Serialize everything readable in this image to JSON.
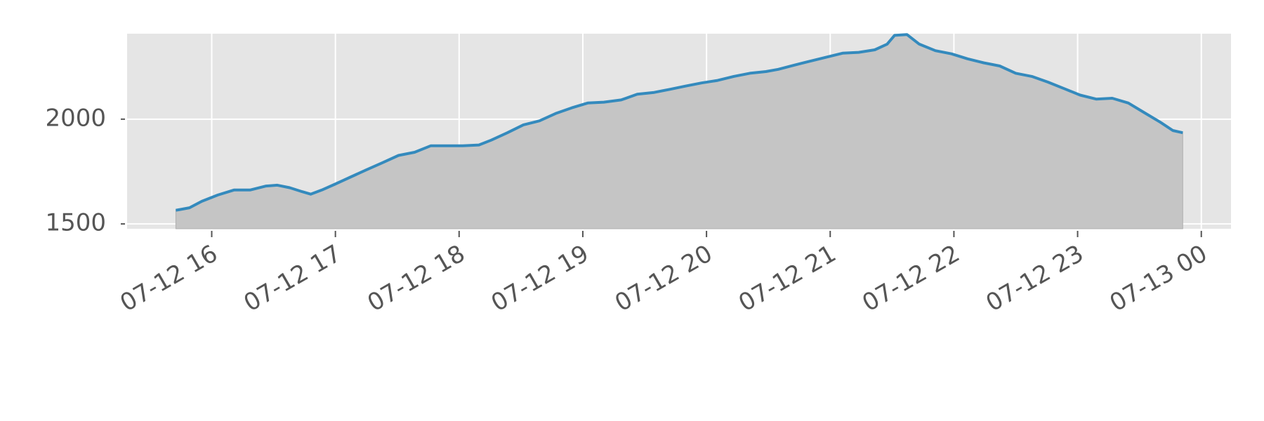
{
  "chart_data": {
    "type": "area",
    "x": [
      15.71,
      15.82,
      15.92,
      16.05,
      16.18,
      16.31,
      16.44,
      16.53,
      16.63,
      16.73,
      16.8,
      16.89,
      16.99,
      17.12,
      17.25,
      17.38,
      17.51,
      17.64,
      17.77,
      17.9,
      18.03,
      18.16,
      18.26,
      18.39,
      18.52,
      18.65,
      18.78,
      18.91,
      19.04,
      19.17,
      19.31,
      19.44,
      19.57,
      19.7,
      19.83,
      19.96,
      20.09,
      20.22,
      20.35,
      20.48,
      20.58,
      20.71,
      20.84,
      20.97,
      21.1,
      21.23,
      21.36,
      21.46,
      21.52,
      21.62,
      21.72,
      21.85,
      21.98,
      22.11,
      22.24,
      22.37,
      22.5,
      22.63,
      22.76,
      22.89,
      23.02,
      23.15,
      23.28,
      23.41,
      23.54,
      23.67,
      23.77,
      23.85
    ],
    "values": [
      1565,
      1577,
      1608,
      1638,
      1662,
      1662,
      1681,
      1685,
      1673,
      1654,
      1642,
      1662,
      1688,
      1723,
      1758,
      1792,
      1827,
      1842,
      1873,
      1873,
      1873,
      1877,
      1900,
      1935,
      1973,
      1992,
      2027,
      2054,
      2077,
      2081,
      2092,
      2119,
      2127,
      2142,
      2158,
      2173,
      2185,
      2204,
      2219,
      2227,
      2238,
      2258,
      2277,
      2296,
      2315,
      2319,
      2331,
      2358,
      2400,
      2404,
      2358,
      2327,
      2312,
      2288,
      2269,
      2254,
      2219,
      2204,
      2177,
      2146,
      2115,
      2096,
      2100,
      2077,
      2031,
      1985,
      1946,
      1935
    ],
    "color": "#348abd",
    "fill_color": "#c5c5c5",
    "xlim": [
      15.316,
      24.24
    ],
    "xticks": [
      {
        "value": 16,
        "label": "07-12 16"
      },
      {
        "value": 17,
        "label": "07-12 17"
      },
      {
        "value": 18,
        "label": "07-12 18"
      },
      {
        "value": 19,
        "label": "07-12 19"
      },
      {
        "value": 20,
        "label": "07-12 20"
      },
      {
        "value": 21,
        "label": "07-12 21"
      },
      {
        "value": 22,
        "label": "07-12 22"
      },
      {
        "value": 23,
        "label": "07-12 23"
      },
      {
        "value": 24,
        "label": "07-13 00"
      }
    ],
    "ylim": [
      1477,
      2408
    ],
    "yticks": [
      1500,
      2000
    ],
    "grid": true
  }
}
